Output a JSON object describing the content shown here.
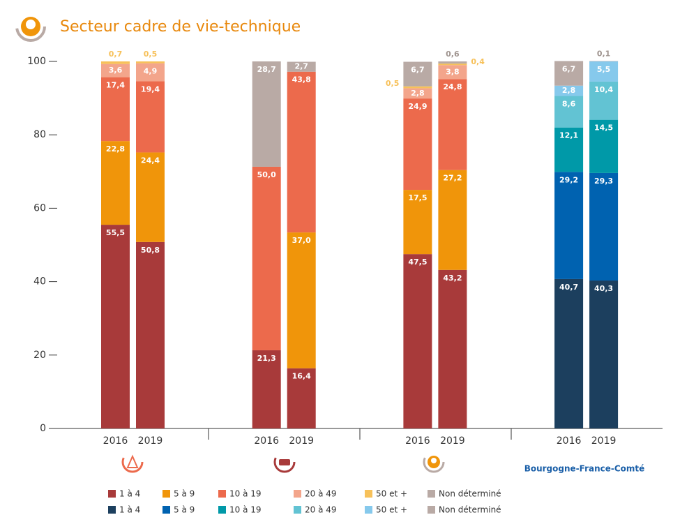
{
  "chart_data": {
    "type": "bar",
    "stacked": true,
    "title": "Secteur cadre de vie-technique",
    "ylim": [
      0,
      100
    ],
    "yticks": [
      0,
      20,
      40,
      60,
      80,
      100
    ],
    "categories": [
      "2016",
      "2019",
      "2016",
      "2019",
      "2016",
      "2019",
      "2016",
      "2019"
    ],
    "group_label": "Bourgogne-France-Comté",
    "series": [
      {
        "name": "1 à 4",
        "color": "#a83a3a",
        "values": [
          55.5,
          50.8,
          21.3,
          16.4,
          47.5,
          43.2,
          null,
          null
        ],
        "value_labels": [
          "55,5",
          "50,8",
          "21,3",
          "16,4",
          "47,5",
          "43,2",
          null,
          null
        ]
      },
      {
        "name": "5 à 9",
        "color": "#f0950a",
        "values": [
          22.8,
          24.4,
          null,
          37.0,
          17.5,
          27.2,
          null,
          null
        ],
        "value_labels": [
          "22,8",
          "24,4",
          null,
          "37,0",
          "17,5",
          "27,2",
          null,
          null
        ]
      },
      {
        "name": "10 à 19",
        "color": "#ec6a4c",
        "values": [
          17.4,
          19.4,
          50.0,
          43.8,
          24.9,
          24.8,
          null,
          null
        ],
        "value_labels": [
          "17,4",
          "19,4",
          "50,0",
          "43,8",
          "24,9",
          "24,8",
          null,
          null
        ]
      },
      {
        "name": "20 à 49",
        "color": "#f3a58b",
        "values": [
          3.6,
          4.9,
          null,
          null,
          2.8,
          3.8,
          null,
          null
        ],
        "value_labels": [
          "3,6",
          "4,9",
          null,
          null,
          "2,8",
          "3,8",
          null,
          null
        ]
      },
      {
        "name": "50 et +",
        "color": "#f7c15a",
        "values": [
          0.7,
          0.5,
          null,
          null,
          0.5,
          0.4,
          null,
          null
        ],
        "value_labels": [
          "0,7",
          "0,5",
          null,
          null,
          "0,5",
          "0,4",
          null,
          null
        ]
      },
      {
        "name": "Non déterminé",
        "color": "#b9aaa5",
        "values": [
          null,
          null,
          28.7,
          2.7,
          6.7,
          0.6,
          null,
          null
        ],
        "value_labels": [
          null,
          null,
          "28,7",
          "2,7",
          "6,7",
          "0,6",
          null,
          null
        ]
      }
    ],
    "series_alt": [
      {
        "name": "1 à 4",
        "color": "#1c3f5e",
        "values": [
          null,
          null,
          null,
          null,
          null,
          null,
          40.7,
          40.3
        ],
        "value_labels": [
          null,
          null,
          null,
          null,
          null,
          null,
          "40,7",
          "40,3"
        ]
      },
      {
        "name": "5 à 9",
        "color": "#0062b0",
        "values": [
          null,
          null,
          null,
          null,
          null,
          null,
          29.2,
          29.3
        ],
        "value_labels": [
          null,
          null,
          null,
          null,
          null,
          null,
          "29,2",
          "29,3"
        ]
      },
      {
        "name": "10 à 19",
        "color": "#0099a8",
        "values": [
          null,
          null,
          null,
          null,
          null,
          null,
          12.1,
          14.5
        ],
        "value_labels": [
          null,
          null,
          null,
          null,
          null,
          null,
          "12,1",
          "14,5"
        ]
      },
      {
        "name": "20 à 49",
        "color": "#62c3d3",
        "values": [
          null,
          null,
          null,
          null,
          null,
          null,
          8.6,
          10.4
        ],
        "value_labels": [
          null,
          null,
          null,
          null,
          null,
          null,
          "8,6",
          "10,4"
        ]
      },
      {
        "name": "50 et +",
        "color": "#86c9ec",
        "values": [
          null,
          null,
          null,
          null,
          null,
          null,
          2.8,
          5.5
        ],
        "value_labels": [
          null,
          null,
          null,
          null,
          null,
          null,
          "2,8",
          "5,5"
        ]
      },
      {
        "name": "Non déterminé",
        "color": "#b9aaa5",
        "values": [
          null,
          null,
          null,
          null,
          null,
          null,
          6.7,
          0.1
        ],
        "value_labels": [
          null,
          null,
          null,
          null,
          null,
          null,
          "6,7",
          "0,1"
        ]
      }
    ]
  }
}
